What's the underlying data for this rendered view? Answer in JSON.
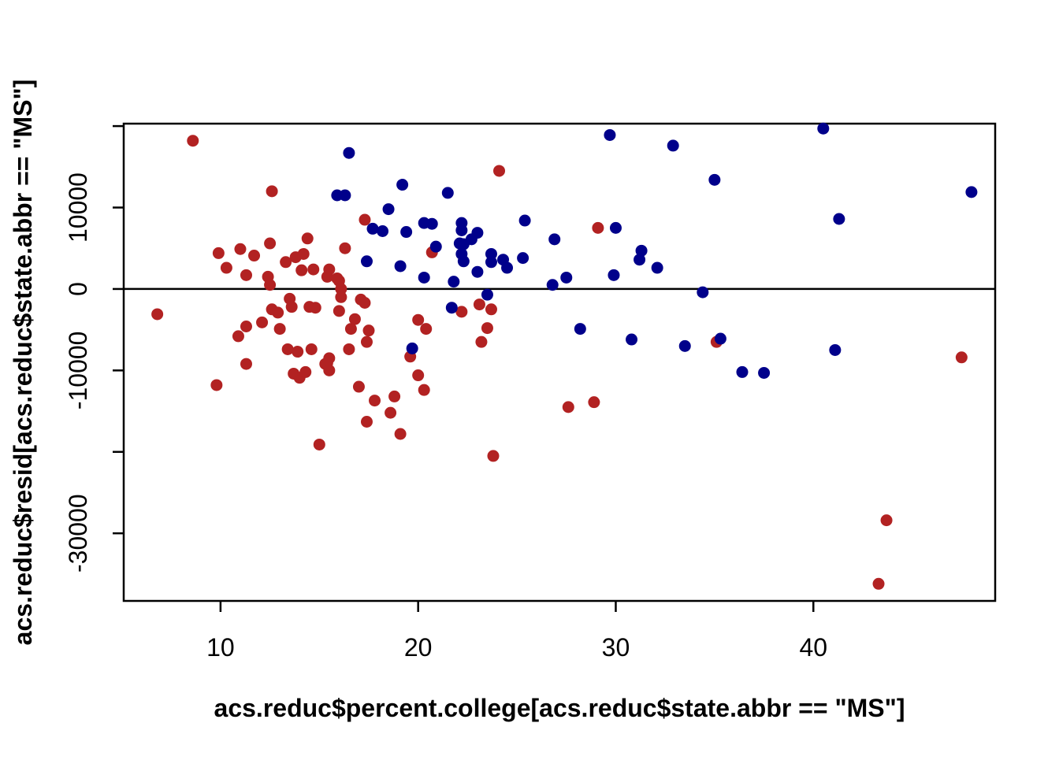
{
  "figure": {
    "background": "#ffffff",
    "foreground": "#000000"
  },
  "chart_data": {
    "type": "scatter",
    "title": "",
    "xlabel": "acs.reduc$percent.college[acs.reduc$state.abbr == \"MS\"]",
    "ylabel": "acs.reduc$resid[acs.reduc$state.abbr == \"MS\"]",
    "xlim": [
      5.1,
      49.2
    ],
    "ylim": [
      -38300,
      20300
    ],
    "grid": false,
    "legend": null,
    "hline_y": 0,
    "x_ticks": [
      {
        "value": 10,
        "label": "10"
      },
      {
        "value": 20,
        "label": "20"
      },
      {
        "value": 30,
        "label": "30"
      },
      {
        "value": 40,
        "label": "40"
      }
    ],
    "y_ticks": [
      {
        "value": 20000,
        "label": ""
      },
      {
        "value": 10000,
        "label": "10000"
      },
      {
        "value": 0,
        "label": "0"
      },
      {
        "value": -10000,
        "label": "-10000"
      },
      {
        "value": -20000,
        "label": ""
      },
      {
        "value": -30000,
        "label": "-30000"
      }
    ],
    "point_radius_px": 7.5,
    "series": [
      {
        "name": "red-group",
        "color": "#B22222",
        "points": [
          [
            8.6,
            18200
          ],
          [
            24.1,
            14500
          ],
          [
            12.6,
            12000
          ],
          [
            17.3,
            8500
          ],
          [
            29.1,
            7500
          ],
          [
            14.4,
            6200
          ],
          [
            12.5,
            5600
          ],
          [
            11.0,
            4900
          ],
          [
            16.3,
            5000
          ],
          [
            9.9,
            4400
          ],
          [
            11.7,
            4100
          ],
          [
            14.2,
            4300
          ],
          [
            13.8,
            3900
          ],
          [
            13.3,
            3300
          ],
          [
            10.3,
            2600
          ],
          [
            11.3,
            1700
          ],
          [
            12.4,
            1500
          ],
          [
            14.1,
            2300
          ],
          [
            14.7,
            2400
          ],
          [
            15.5,
            2400
          ],
          [
            15.4,
            1500
          ],
          [
            15.9,
            1300
          ],
          [
            16.0,
            1000
          ],
          [
            20.7,
            4500
          ],
          [
            16.1,
            0
          ],
          [
            16.1,
            -1000
          ],
          [
            6.8,
            -3100
          ],
          [
            12.5,
            500
          ],
          [
            13.5,
            -1200
          ],
          [
            13.6,
            -2200
          ],
          [
            12.6,
            -2500
          ],
          [
            12.9,
            -2900
          ],
          [
            14.5,
            -2200
          ],
          [
            14.8,
            -2300
          ],
          [
            16.0,
            -2700
          ],
          [
            17.1,
            -1300
          ],
          [
            17.3,
            -1700
          ],
          [
            11.3,
            -4600
          ],
          [
            12.1,
            -4100
          ],
          [
            10.9,
            -5800
          ],
          [
            13.0,
            -4900
          ],
          [
            16.6,
            -4900
          ],
          [
            16.8,
            -3700
          ],
          [
            17.5,
            -5100
          ],
          [
            17.4,
            -6500
          ],
          [
            16.5,
            -7400
          ],
          [
            13.4,
            -7400
          ],
          [
            13.9,
            -7700
          ],
          [
            14.6,
            -7400
          ],
          [
            15.5,
            -8500
          ],
          [
            15.3,
            -9200
          ],
          [
            20.0,
            -3800
          ],
          [
            20.4,
            -4900
          ],
          [
            19.6,
            -8300
          ],
          [
            20.0,
            -10600
          ],
          [
            20.3,
            -12400
          ],
          [
            11.3,
            -9200
          ],
          [
            13.7,
            -10400
          ],
          [
            14.0,
            -10900
          ],
          [
            14.3,
            -10200
          ],
          [
            15.4,
            -9100
          ],
          [
            15.5,
            -10000
          ],
          [
            17.0,
            -12000
          ],
          [
            9.8,
            -11800
          ],
          [
            17.4,
            -16300
          ],
          [
            17.8,
            -13700
          ],
          [
            18.6,
            -15200
          ],
          [
            18.8,
            -13200
          ],
          [
            19.1,
            -17800
          ],
          [
            15.0,
            -19100
          ],
          [
            23.5,
            -4800
          ],
          [
            23.2,
            -6500
          ],
          [
            23.1,
            -1900
          ],
          [
            23.7,
            -2500
          ],
          [
            22.2,
            -2800
          ],
          [
            23.8,
            -20500
          ],
          [
            27.6,
            -14500
          ],
          [
            28.9,
            -13900
          ],
          [
            35.1,
            -6500
          ],
          [
            47.5,
            -8400
          ],
          [
            43.7,
            -28400
          ],
          [
            43.3,
            -36200
          ]
        ]
      },
      {
        "name": "blue-group",
        "color": "#00008B",
        "points": [
          [
            16.5,
            16700
          ],
          [
            15.9,
            11500
          ],
          [
            16.3,
            11500
          ],
          [
            19.2,
            12800
          ],
          [
            21.5,
            11800
          ],
          [
            18.5,
            9800
          ],
          [
            17.7,
            7400
          ],
          [
            18.2,
            7100
          ],
          [
            20.3,
            8100
          ],
          [
            20.7,
            8000
          ],
          [
            19.4,
            7000
          ],
          [
            22.2,
            8100
          ],
          [
            22.2,
            7200
          ],
          [
            23.0,
            6900
          ],
          [
            22.7,
            6100
          ],
          [
            25.4,
            8400
          ],
          [
            22.1,
            5600
          ],
          [
            22.3,
            5500
          ],
          [
            20.9,
            5200
          ],
          [
            22.2,
            4300
          ],
          [
            22.3,
            3400
          ],
          [
            26.9,
            6100
          ],
          [
            23.7,
            4300
          ],
          [
            17.4,
            3400
          ],
          [
            19.1,
            2800
          ],
          [
            23.7,
            3300
          ],
          [
            24.3,
            3600
          ],
          [
            24.5,
            2600
          ],
          [
            25.3,
            3800
          ],
          [
            23.0,
            2100
          ],
          [
            20.3,
            1400
          ],
          [
            21.8,
            900
          ],
          [
            27.5,
            1400
          ],
          [
            26.8,
            500
          ],
          [
            23.5,
            -700
          ],
          [
            21.7,
            -2300
          ],
          [
            19.7,
            -7300
          ],
          [
            28.2,
            -4900
          ],
          [
            29.7,
            18900
          ],
          [
            40.5,
            19700
          ],
          [
            32.9,
            17600
          ],
          [
            35.0,
            13400
          ],
          [
            30.0,
            7500
          ],
          [
            31.3,
            4700
          ],
          [
            31.2,
            3600
          ],
          [
            32.1,
            2600
          ],
          [
            29.9,
            1700
          ],
          [
            34.4,
            -400
          ],
          [
            30.8,
            -6200
          ],
          [
            33.5,
            -7000
          ],
          [
            35.3,
            -6100
          ],
          [
            36.4,
            -10200
          ],
          [
            37.5,
            -10300
          ],
          [
            41.1,
            -7500
          ],
          [
            48.0,
            11900
          ],
          [
            41.3,
            8600
          ]
        ]
      }
    ]
  }
}
